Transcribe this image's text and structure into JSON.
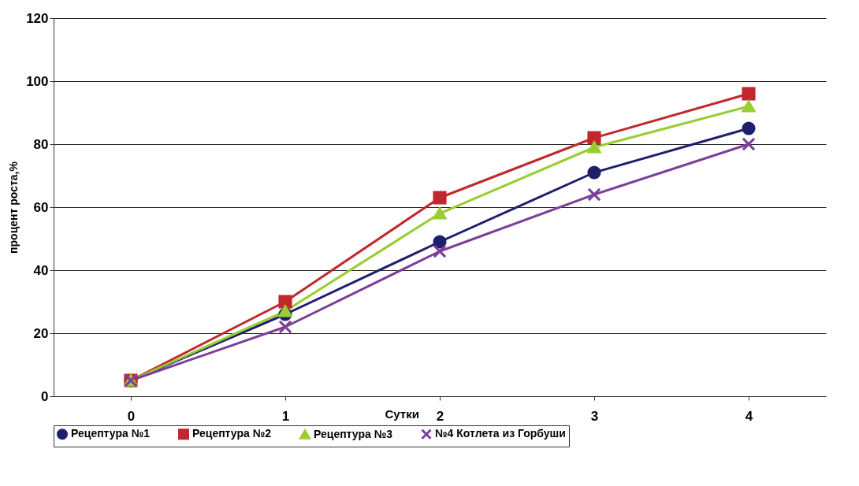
{
  "chart_data": {
    "type": "line",
    "xlabel": "Сутки",
    "ylabel": "процент роста,%",
    "categories": [
      "0",
      "1",
      "2",
      "3",
      "4"
    ],
    "ylim": [
      0,
      120
    ],
    "yticks": [
      0,
      20,
      40,
      60,
      80,
      100,
      120
    ],
    "grid": "y",
    "legend": "bottom",
    "series": [
      {
        "name": "Рецептура №1",
        "color": "#1f1f6e",
        "marker": "circle",
        "values": [
          5,
          26,
          49,
          71,
          85
        ]
      },
      {
        "name": "Рецептура №2",
        "color": "#c0282e",
        "marker": "square",
        "values": [
          5,
          30,
          63,
          82,
          96
        ]
      },
      {
        "name": "Рецептура №3",
        "color": "#9acd32",
        "marker": "triangle",
        "values": [
          5,
          27,
          58,
          79,
          92
        ]
      },
      {
        "name": "№4 Котлета из Горбуши",
        "color": "#7b3f98",
        "marker": "cross",
        "values": [
          5,
          22,
          46,
          64,
          80
        ]
      }
    ]
  }
}
